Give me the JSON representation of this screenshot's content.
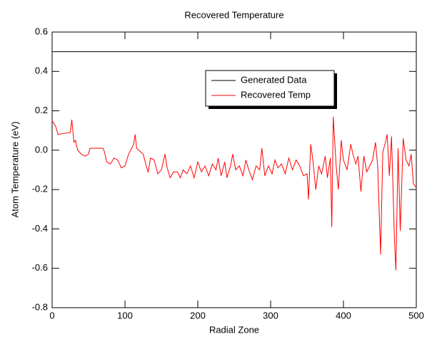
{
  "chart_data": {
    "type": "line",
    "title": "Recovered Temperature",
    "x_label": "Radial Zone",
    "y_label": "Atom Temperature (eV)",
    "xlim": [
      0,
      500
    ],
    "xticks": [
      0,
      100,
      200,
      300,
      400,
      500
    ],
    "ylim": [
      -0.8,
      0.6
    ],
    "yticks": [
      -0.8,
      -0.6,
      -0.4,
      -0.2,
      {
        "value": 0,
        "label": "0.0"
      },
      0.2,
      0.4,
      0.6
    ],
    "legend": "upper right",
    "series": [
      {
        "name": "Generated Data",
        "color": "#000000",
        "x": [
          0,
          500
        ],
        "values": [
          0.5,
          0.5
        ]
      },
      {
        "name": "Recovered Temp",
        "color": "#ff0000",
        "x": [
          0,
          5,
          8,
          25,
          27,
          30,
          32,
          35,
          40,
          45,
          50,
          52,
          70,
          72,
          75,
          80,
          85,
          90,
          95,
          100,
          105,
          112,
          114,
          116,
          125,
          130,
          132,
          135,
          140,
          145,
          150,
          155,
          158,
          162,
          167,
          172,
          176,
          180,
          185,
          190,
          195,
          200,
          205,
          210,
          215,
          220,
          225,
          228,
          232,
          237,
          240,
          245,
          248,
          252,
          257,
          262,
          266,
          270,
          275,
          280,
          285,
          288,
          292,
          297,
          302,
          306,
          310,
          315,
          320,
          325,
          330,
          335,
          340,
          345,
          350,
          352,
          355,
          358,
          362,
          366,
          370,
          375,
          378,
          382,
          384,
          386,
          390,
          393,
          397,
          400,
          405,
          410,
          413,
          417,
          420,
          424,
          428,
          432,
          436,
          440,
          444,
          447,
          451,
          454,
          457,
          460,
          463,
          466,
          470,
          472,
          475,
          478,
          482,
          486,
          490,
          493,
          496,
          500
        ],
        "values": [
          0.15,
          0.12,
          0.08,
          0.09,
          0.155,
          0.04,
          0.05,
          0.0,
          -0.02,
          -0.03,
          -0.02,
          0.01,
          0.01,
          -0.01,
          -0.06,
          -0.07,
          -0.04,
          -0.05,
          -0.09,
          -0.08,
          -0.02,
          0.03,
          0.08,
          0.01,
          -0.02,
          -0.09,
          -0.11,
          -0.04,
          -0.05,
          -0.12,
          -0.1,
          -0.02,
          -0.09,
          -0.14,
          -0.11,
          -0.11,
          -0.14,
          -0.1,
          -0.12,
          -0.08,
          -0.14,
          -0.06,
          -0.11,
          -0.08,
          -0.13,
          -0.07,
          -0.1,
          -0.04,
          -0.13,
          -0.06,
          -0.14,
          -0.08,
          -0.02,
          -0.1,
          -0.08,
          -0.13,
          -0.05,
          -0.1,
          -0.15,
          -0.08,
          -0.1,
          0.01,
          -0.13,
          -0.08,
          -0.12,
          -0.05,
          -0.09,
          -0.07,
          -0.12,
          -0.04,
          -0.1,
          -0.05,
          -0.08,
          -0.13,
          -0.12,
          -0.25,
          0.03,
          -0.05,
          -0.2,
          -0.08,
          -0.12,
          -0.03,
          -0.14,
          -0.04,
          -0.39,
          0.17,
          -0.08,
          -0.2,
          0.05,
          -0.05,
          -0.1,
          0.03,
          -0.02,
          -0.07,
          -0.03,
          -0.21,
          -0.03,
          -0.11,
          -0.08,
          -0.05,
          0.04,
          -0.08,
          -0.53,
          -0.01,
          0.03,
          0.08,
          -0.13,
          0.07,
          -0.45,
          -0.61,
          0.01,
          -0.41,
          0.06,
          -0.05,
          -0.08,
          -0.02,
          -0.17,
          -0.19
        ]
      }
    ]
  }
}
